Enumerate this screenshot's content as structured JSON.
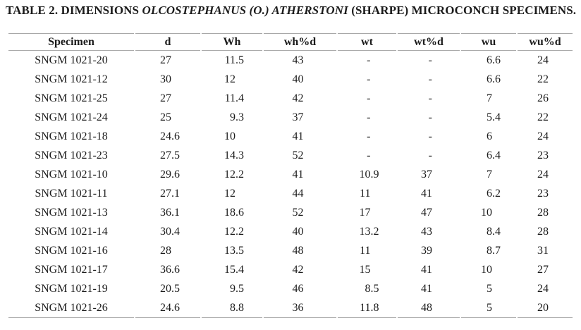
{
  "caption": {
    "prefix": "TABLE 2. DIMENSIONS ",
    "species_italic": "OLCOSTEPHANUS (O.) ATHERSTONI",
    "suffix": " (SHARPE) MICROCONCH SPECIMENS."
  },
  "colors": {
    "background": "#ffffff",
    "text": "#1b1b1b",
    "rule": "#a8a8a8"
  },
  "table": {
    "columns": [
      "Specimen",
      "d",
      "Wh",
      "wh%d",
      "wt",
      "wt%d",
      "wu",
      "wu%d"
    ],
    "rows": [
      {
        "specimen": "SNGM 1021-20",
        "d": "27",
        "wh": "11.5",
        "whpd": "43",
        "wt": "-",
        "wtpd": "-",
        "wu": "6.6",
        "wupd": "24"
      },
      {
        "specimen": "SNGM 1021-12",
        "d": "30",
        "wh": "12",
        "whpd": "40",
        "wt": "-",
        "wtpd": "-",
        "wu": "6.6",
        "wupd": "22"
      },
      {
        "specimen": "SNGM 1021-25",
        "d": "27",
        "wh": "11.4",
        "whpd": "42",
        "wt": "-",
        "wtpd": "-",
        "wu": "7",
        "wupd": "26"
      },
      {
        "specimen": "SNGM 1021-24",
        "d": "25",
        "wh": "9.3",
        "whpd": "37",
        "wt": "-",
        "wtpd": "-",
        "wu": "5.4",
        "wupd": "22"
      },
      {
        "specimen": "SNGM 1021-18",
        "d": "24.6",
        "wh": "10",
        "whpd": "41",
        "wt": "-",
        "wtpd": "-",
        "wu": "6",
        "wupd": "24"
      },
      {
        "specimen": "SNGM 1021-23",
        "d": "27.5",
        "wh": "14.3",
        "whpd": "52",
        "wt": "-",
        "wtpd": "-",
        "wu": "6.4",
        "wupd": "23"
      },
      {
        "specimen": "SNGM 1021-10",
        "d": "29.6",
        "wh": "12.2",
        "whpd": "41",
        "wt": "10.9",
        "wtpd": "37",
        "wu": "7",
        "wupd": "24"
      },
      {
        "specimen": "SNGM 1021-11",
        "d": "27.1",
        "wh": "12",
        "whpd": "44",
        "wt": "11",
        "wtpd": "41",
        "wu": "6.2",
        "wupd": "23"
      },
      {
        "specimen": "SNGM 1021-13",
        "d": "36.1",
        "wh": "18.6",
        "whpd": "52",
        "wt": "17",
        "wtpd": "47",
        "wu": "10",
        "wupd": "28"
      },
      {
        "specimen": "SNGM 1021-14",
        "d": "30.4",
        "wh": "12.2",
        "whpd": "40",
        "wt": "13.2",
        "wtpd": "43",
        "wu": "8.4",
        "wupd": "28"
      },
      {
        "specimen": "SNGM 1021-16",
        "d": "28",
        "wh": "13.5",
        "whpd": "48",
        "wt": "11",
        "wtpd": "39",
        "wu": "8.7",
        "wupd": "31"
      },
      {
        "specimen": "SNGM 1021-17",
        "d": "36.6",
        "wh": "15.4",
        "whpd": "42",
        "wt": "15",
        "wtpd": "41",
        "wu": "10",
        "wupd": "27"
      },
      {
        "specimen": "SNGM 1021-19",
        "d": "20.5",
        "wh": "9.5",
        "whpd": "46",
        "wt": "8.5",
        "wtpd": "41",
        "wu": "5",
        "wupd": "24"
      },
      {
        "specimen": "SNGM 1021-26",
        "d": "24.6",
        "wh": "8.8",
        "whpd": "36",
        "wt": "11.8",
        "wtpd": "48",
        "wu": "5",
        "wupd": "20"
      }
    ]
  }
}
